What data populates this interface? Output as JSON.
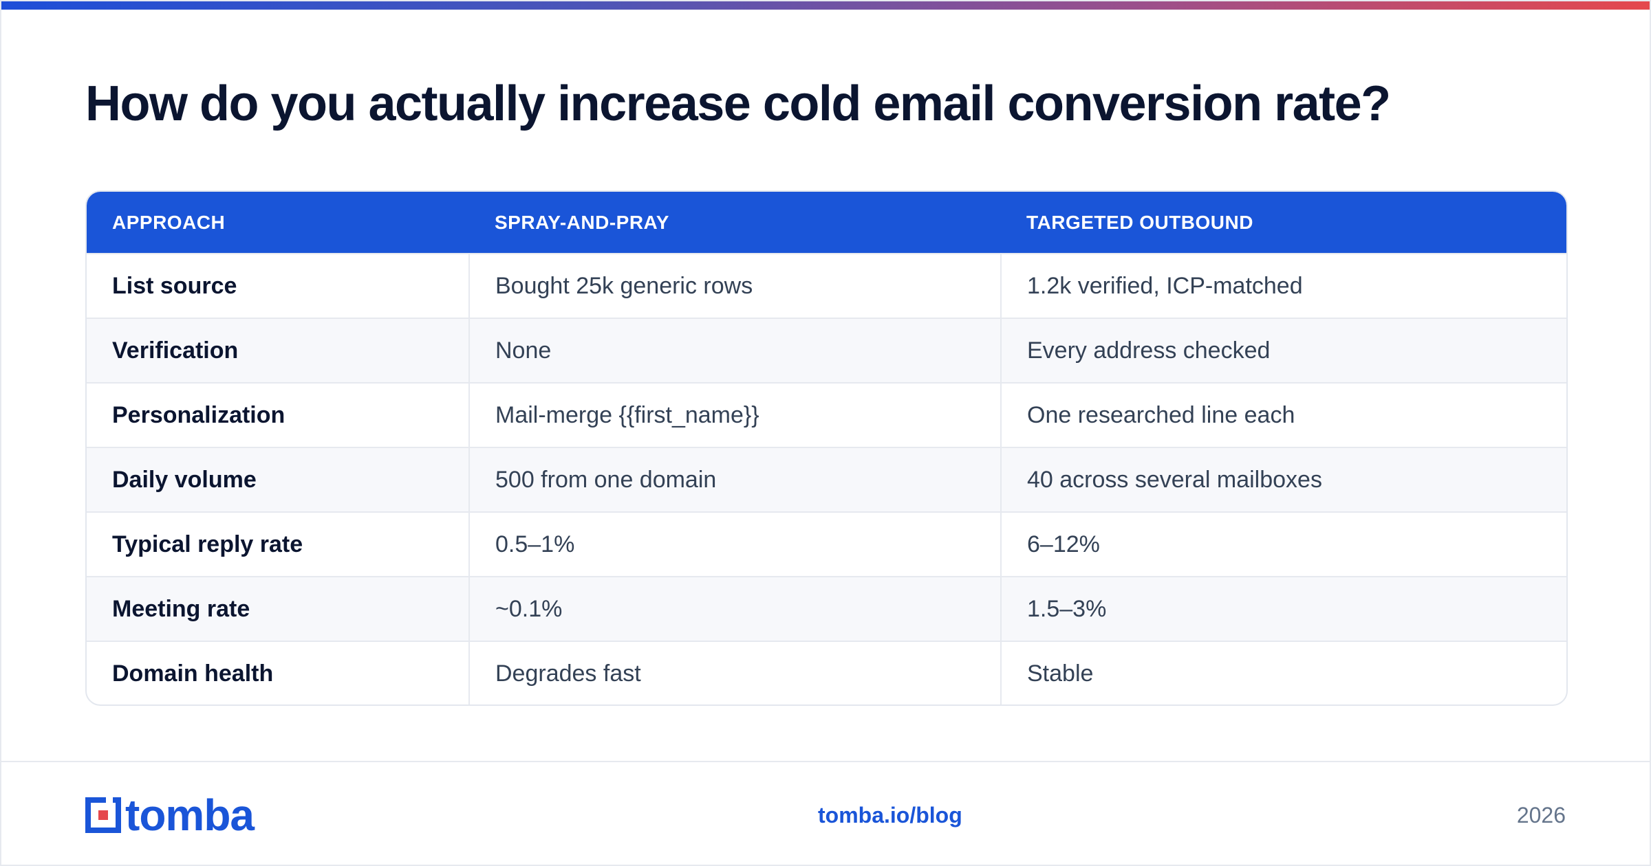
{
  "title": "How do you actually increase cold email conversion rate?",
  "table": {
    "headers": [
      "APPROACH",
      "SPRAY-AND-PRAY",
      "TARGETED OUTBOUND"
    ],
    "rows": [
      [
        "List source",
        "Bought 25k generic rows",
        "1.2k verified, ICP-matched"
      ],
      [
        "Verification",
        "None",
        "Every address checked"
      ],
      [
        "Personalization",
        "Mail-merge {{first_name}}",
        "One researched line each"
      ],
      [
        "Daily volume",
        "500 from one domain",
        "40 across several mailboxes"
      ],
      [
        "Typical reply rate",
        "0.5–1%",
        "6–12%"
      ],
      [
        "Meeting rate",
        "~0.1%",
        "1.5–3%"
      ],
      [
        "Domain health",
        "Degrades fast",
        "Stable"
      ]
    ]
  },
  "footer": {
    "logo_text": "tomba",
    "url": "tomba.io/blog",
    "year": "2026"
  },
  "colors": {
    "accent": "#1a55d8",
    "logo_red": "#e5484d",
    "heading": "#0b1530"
  }
}
